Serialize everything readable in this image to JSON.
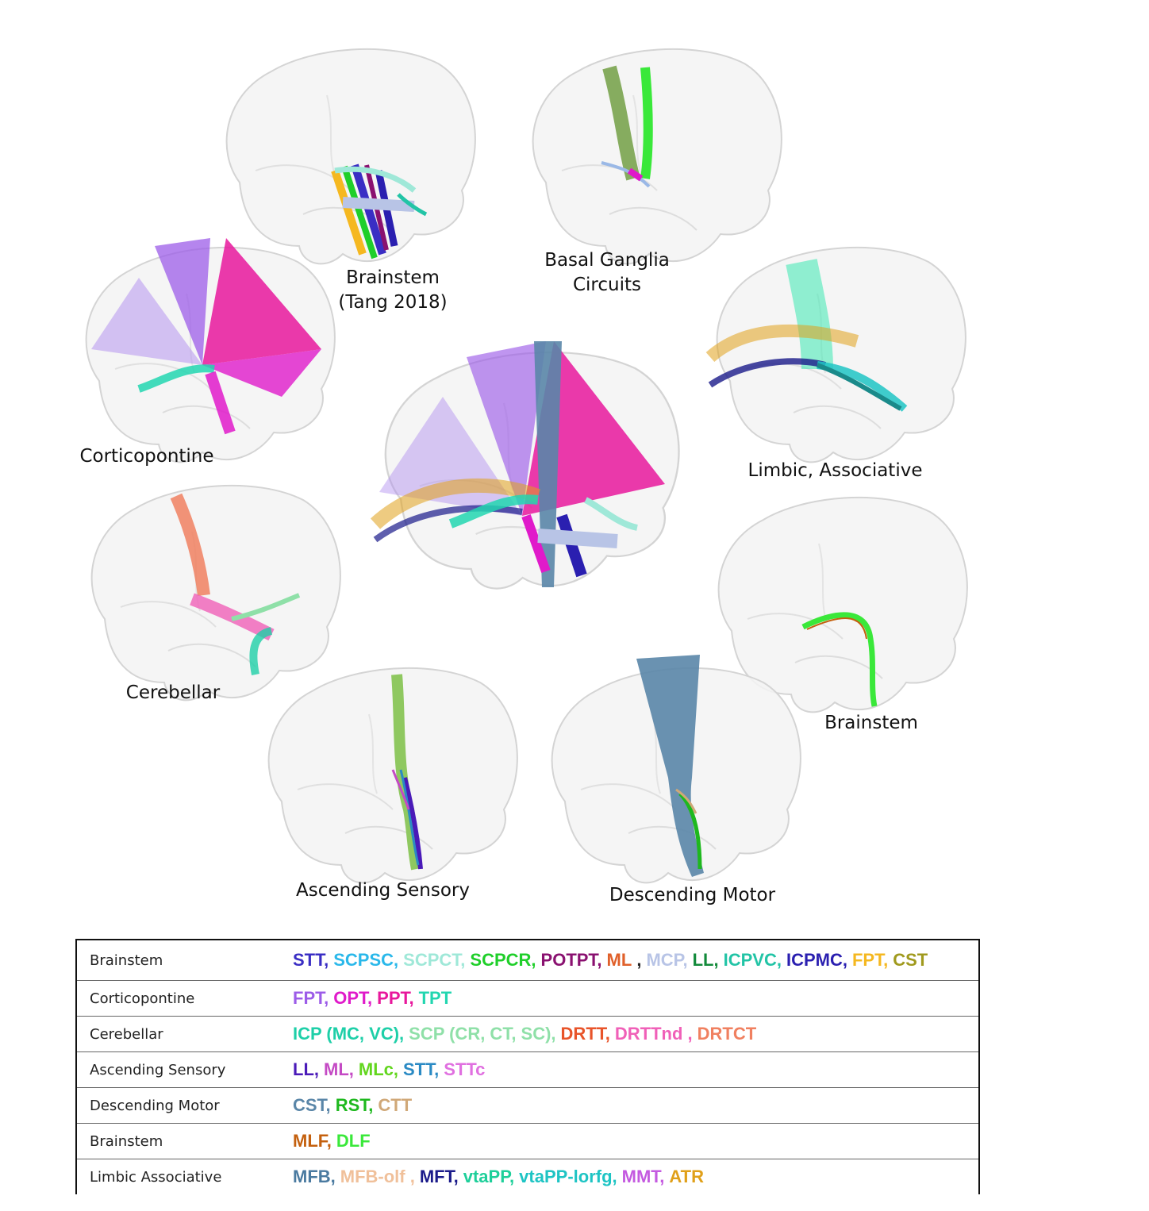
{
  "panels": {
    "brainstem_tang": {
      "caption_lines": [
        "Brainstem",
        "(Tang 2018)"
      ]
    },
    "basal_ganglia": {
      "caption_lines": [
        "Basal Ganglia",
        "Circuits"
      ]
    },
    "corticopontine": {
      "caption_lines": [
        "Corticopontine"
      ]
    },
    "limbic": {
      "caption_lines": [
        "Limbic, Associative"
      ]
    },
    "cerebellar": {
      "caption_lines": [
        "Cerebellar"
      ]
    },
    "brainstem": {
      "caption_lines": [
        "Brainstem"
      ]
    },
    "ascending": {
      "caption_lines": [
        "Ascending Sensory"
      ]
    },
    "descending": {
      "caption_lines": [
        "Descending Motor"
      ]
    }
  },
  "legend_table": {
    "rows": [
      {
        "category": "Brainstem",
        "tracts": [
          {
            "label": "STT,",
            "color": "#3a2ec4"
          },
          {
            "label": "SCPSC,",
            "color": "#2ab8ea"
          },
          {
            "label": "SCPCT,",
            "color": "#9fe8d8"
          },
          {
            "label": "SCPCR,",
            "color": "#1fcf2a"
          },
          {
            "label": "POTPT,",
            "color": "#8a1170"
          },
          {
            "label": "ML",
            "color": "#e0602a"
          },
          {
            "label": ",",
            "color": "#222222"
          },
          {
            "label": "MCP,",
            "color": "#b8c4e6"
          },
          {
            "label": "LL,",
            "color": "#128a3a"
          },
          {
            "label": "ICPVC,",
            "color": "#22c4a6"
          },
          {
            "label": "ICPMC,",
            "color": "#2a1fb0"
          },
          {
            "label": "FPT,",
            "color": "#f5b820"
          },
          {
            "label": "CST",
            "color": "#a09a1e"
          }
        ]
      },
      {
        "category": "Corticopontine",
        "tracts": [
          {
            "label": "FPT,",
            "color": "#9c5ce8"
          },
          {
            "label": "OPT,",
            "color": "#e01aca"
          },
          {
            "label": "PPT,",
            "color": "#e8189c"
          },
          {
            "label": "TPT",
            "color": "#22d6b0"
          }
        ]
      },
      {
        "category": "Cerebellar",
        "tracts": [
          {
            "label": "ICP (MC, VC),",
            "color": "#1ecfa8"
          },
          {
            "label": "SCP (CR, CT, SC),",
            "color": "#8fe0a8"
          },
          {
            "label": "DRTT,",
            "color": "#e8542a"
          },
          {
            "label": "DRTTnd ,",
            "color": "#f060b8"
          },
          {
            "label": "DRTCT",
            "color": "#f08060"
          }
        ]
      },
      {
        "category": "Ascending Sensory",
        "tracts": [
          {
            "label": "LL,",
            "color": "#4a1ab8"
          },
          {
            "label": "ML,",
            "color": "#c44ac4"
          },
          {
            "label": "MLc,",
            "color": "#62d61e"
          },
          {
            "label": "STT,",
            "color": "#2a8ac4"
          },
          {
            "label": "STTc",
            "color": "#e070e0"
          }
        ]
      },
      {
        "category": "Descending Motor",
        "tracts": [
          {
            "label": "CST,",
            "color": "#5a86a8"
          },
          {
            "label": "RST,",
            "color": "#1eb81e"
          },
          {
            "label": "CTT",
            "color": "#d0a878"
          }
        ]
      },
      {
        "category": "Brainstem",
        "tracts": [
          {
            "label": "MLF,",
            "color": "#c4600e"
          },
          {
            "label": "DLF",
            "color": "#3ae83a"
          }
        ]
      },
      {
        "category": "Limbic Associative",
        "tracts": [
          {
            "label": "MFB,",
            "color": "#4a7aa0"
          },
          {
            "label": "MFB-olf ,",
            "color": "#f0c09a"
          },
          {
            "label": "MFT,",
            "color": "#1a1a8a"
          },
          {
            "label": "vtaPP,",
            "color": "#1ecf9a"
          },
          {
            "label": "vtaPP-lorfg,",
            "color": "#1ec4c4"
          },
          {
            "label": "MMT,",
            "color": "#c45ae0"
          },
          {
            "label": "ATR",
            "color": "#e0a01a"
          }
        ]
      }
    ]
  }
}
